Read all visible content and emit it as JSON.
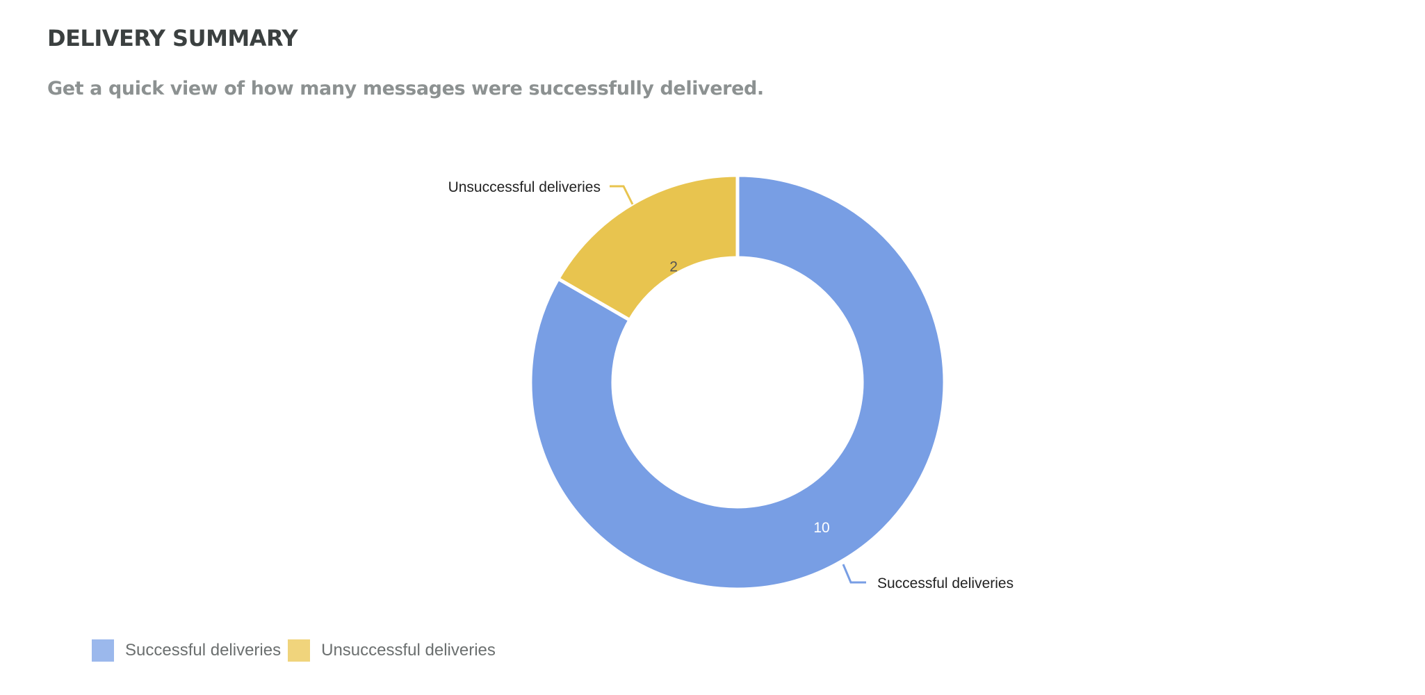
{
  "header": {
    "title": "DELIVERY SUMMARY",
    "subtitle": "Get a quick view of how many messages were successfully delivered."
  },
  "chart_data": {
    "type": "pie",
    "variant": "donut",
    "slices": [
      {
        "label": "Successful deliveries",
        "value": 10,
        "color": "#789ee4"
      },
      {
        "label": "Unsuccessful deliveries",
        "value": 2,
        "color": "#e8c44f"
      }
    ],
    "data_labels": [
      "10",
      "2"
    ],
    "legend_placement": "bottom-left",
    "label_colors": {
      "inside_on_blue": "#ffffff",
      "inside_on_yellow": "#555555",
      "outside": "#222222"
    }
  },
  "legend": {
    "items": [
      {
        "label": "Successful deliveries",
        "color": "#9bb8ec"
      },
      {
        "label": "Unsuccessful deliveries",
        "color": "#f0d47c"
      }
    ]
  }
}
